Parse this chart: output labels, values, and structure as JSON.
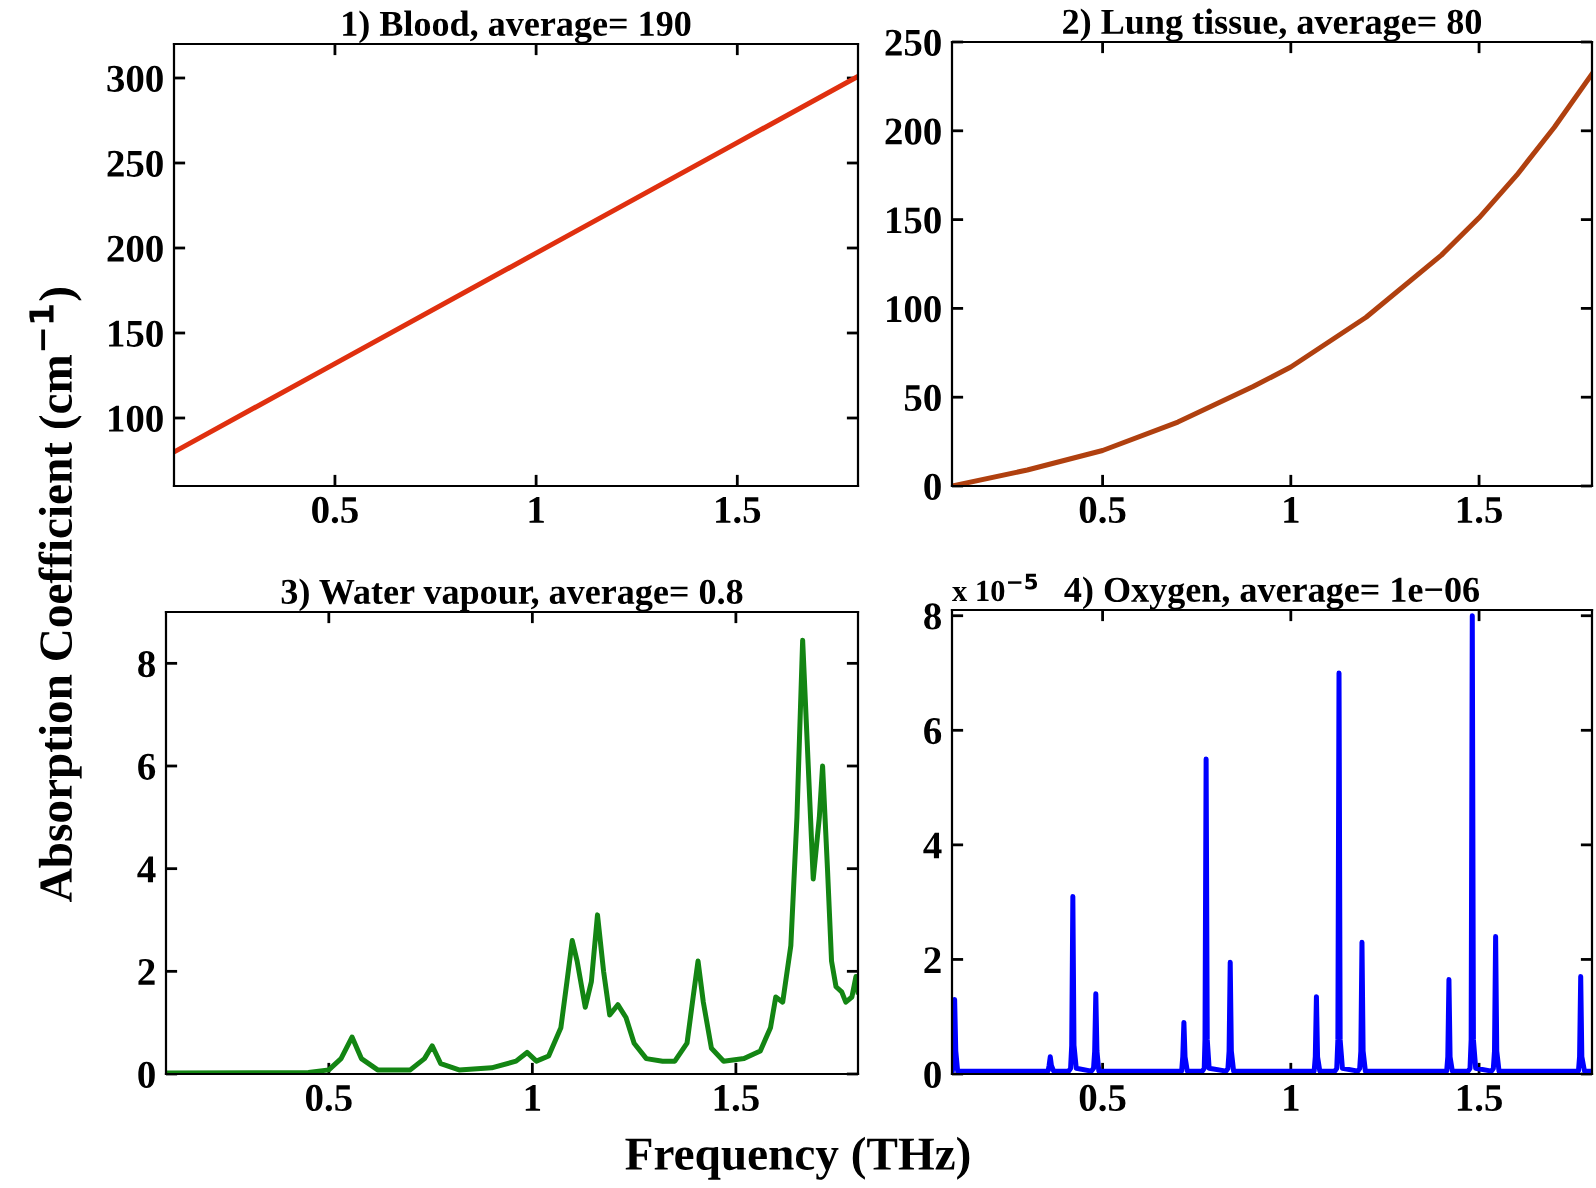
{
  "chart_data": [
    {
      "type": "line",
      "title": "1) Blood, average= 190",
      "ylabel": "Absorption Coefficient (cm$^{−1}$)",
      "xlim": [
        0.1,
        1.8
      ],
      "xticks": [
        0.5,
        1,
        1.5
      ],
      "ylim": [
        60,
        320
      ],
      "yticks": [
        100,
        150,
        200,
        250,
        300
      ],
      "grid": false,
      "series": [
        {
          "color": "#e0300f",
          "x": [
            0.1,
            0.5,
            1.0,
            1.5,
            1.8
          ],
          "values": [
            80,
            132,
            197,
            262,
            301
          ]
        }
      ]
    },
    {
      "type": "line",
      "title": "2) Lung tissue, average= 80",
      "xlim": [
        0.1,
        1.8
      ],
      "xticks": [
        0.5,
        1,
        1.5
      ],
      "ylim": [
        0,
        250
      ],
      "yticks": [
        0,
        50,
        100,
        150,
        200,
        250
      ],
      "grid": false,
      "series": [
        {
          "color": "#b0400f",
          "x": [
            0.1,
            0.3,
            0.5,
            0.7,
            0.9,
            1.0,
            1.2,
            1.4,
            1.5,
            1.6,
            1.7,
            1.8
          ],
          "values": [
            0,
            9,
            20,
            36,
            56,
            67,
            95,
            130,
            151,
            175,
            202,
            232
          ]
        }
      ]
    },
    {
      "type": "line",
      "title": "3) Water vapour, average= 0.8",
      "xlabel": "Frequency (THz)",
      "xlim": [
        0.1,
        1.8
      ],
      "xticks": [
        0.5,
        1,
        1.5
      ],
      "ylim": [
        0,
        9
      ],
      "yticks": [
        0,
        2,
        4,
        6,
        8
      ],
      "grid": false,
      "series": [
        {
          "color": "#138513",
          "x": [
            0.1,
            0.45,
            0.5,
            0.53,
            0.557,
            0.58,
            0.62,
            0.7,
            0.735,
            0.754,
            0.775,
            0.82,
            0.9,
            0.96,
            0.987,
            1.01,
            1.04,
            1.07,
            1.085,
            1.098,
            1.11,
            1.13,
            1.145,
            1.16,
            1.175,
            1.19,
            1.21,
            1.23,
            1.25,
            1.28,
            1.32,
            1.35,
            1.38,
            1.395,
            1.407,
            1.42,
            1.44,
            1.47,
            1.52,
            1.56,
            1.585,
            1.598,
            1.615,
            1.635,
            1.65,
            1.664,
            1.675,
            1.69,
            1.705,
            1.713,
            1.725,
            1.735,
            1.746,
            1.76,
            1.77,
            1.785,
            1.795,
            1.8
          ],
          "values": [
            0.02,
            0.03,
            0.08,
            0.3,
            0.72,
            0.3,
            0.08,
            0.08,
            0.3,
            0.55,
            0.2,
            0.08,
            0.12,
            0.25,
            0.42,
            0.25,
            0.35,
            0.9,
            1.8,
            2.6,
            2.2,
            1.3,
            1.8,
            3.1,
            2.0,
            1.15,
            1.35,
            1.1,
            0.6,
            0.3,
            0.25,
            0.25,
            0.6,
            1.5,
            2.2,
            1.4,
            0.5,
            0.25,
            0.3,
            0.45,
            0.9,
            1.5,
            1.4,
            2.5,
            5.0,
            8.45,
            6.5,
            3.8,
            5.0,
            6.0,
            4.0,
            2.2,
            1.7,
            1.6,
            1.4,
            1.5,
            1.9,
            1.6
          ]
        }
      ]
    },
    {
      "type": "line",
      "title": "4) Oxygen, average= 1e−06",
      "annotations": [
        "x 10$^{−5}$"
      ],
      "xlim": [
        0.1,
        1.8
      ],
      "xticks": [
        0.5,
        1,
        1.5
      ],
      "ylim": [
        0,
        8.1
      ],
      "yticks": [
        0,
        2,
        4,
        6,
        8
      ],
      "grid": false,
      "series": [
        {
          "color": "#0000ff",
          "x": [
            0.1,
            0.101,
            0.104,
            0.107,
            0.11,
            0.115,
            0.35,
            0.355,
            0.358,
            0.361,
            0.364,
            0.37,
            0.41,
            0.415,
            0.418,
            0.421,
            0.424,
            0.43,
            0.47,
            0.476,
            0.479,
            0.482,
            0.485,
            0.49,
            0.705,
            0.71,
            0.713,
            0.716,
            0.719,
            0.725,
            0.765,
            0.77,
            0.772,
            0.775,
            0.778,
            0.783,
            0.828,
            0.833,
            0.836,
            0.839,
            0.842,
            0.848,
            1.057,
            1.062,
            1.065,
            1.068,
            1.071,
            1.077,
            1.117,
            1.122,
            1.125,
            1.128,
            1.131,
            1.137,
            1.178,
            1.183,
            1.186,
            1.189,
            1.192,
            1.198,
            1.409,
            1.414,
            1.417,
            1.42,
            1.423,
            1.429,
            1.471,
            1.476,
            1.479,
            1.482,
            1.485,
            1.491,
            1.533,
            1.538,
            1.541,
            1.544,
            1.547,
            1.553,
            1.759,
            1.764,
            1.767,
            1.77,
            1.773,
            1.78,
            1.8
          ],
          "values": [
            0.1,
            0.05,
            0.4,
            1.3,
            0.4,
            0.05,
            0.05,
            0.05,
            0.15,
            0.3,
            0.15,
            0.05,
            0.05,
            0.1,
            0.5,
            3.1,
            0.5,
            0.1,
            0.05,
            0.1,
            0.4,
            1.4,
            0.4,
            0.05,
            0.05,
            0.05,
            0.3,
            0.9,
            0.3,
            0.05,
            0.05,
            0.1,
            0.6,
            5.5,
            0.6,
            0.1,
            0.05,
            0.1,
            0.4,
            1.95,
            0.4,
            0.05,
            0.05,
            0.05,
            0.3,
            1.35,
            0.3,
            0.05,
            0.05,
            0.1,
            0.6,
            7.0,
            0.6,
            0.1,
            0.05,
            0.1,
            0.4,
            2.3,
            0.4,
            0.05,
            0.05,
            0.05,
            0.3,
            1.65,
            0.3,
            0.05,
            0.05,
            0.1,
            0.6,
            8.0,
            0.6,
            0.1,
            0.05,
            0.1,
            0.4,
            2.4,
            0.4,
            0.05,
            0.05,
            0.05,
            0.3,
            1.7,
            0.3,
            0.05,
            0.05
          ]
        }
      ]
    }
  ]
}
